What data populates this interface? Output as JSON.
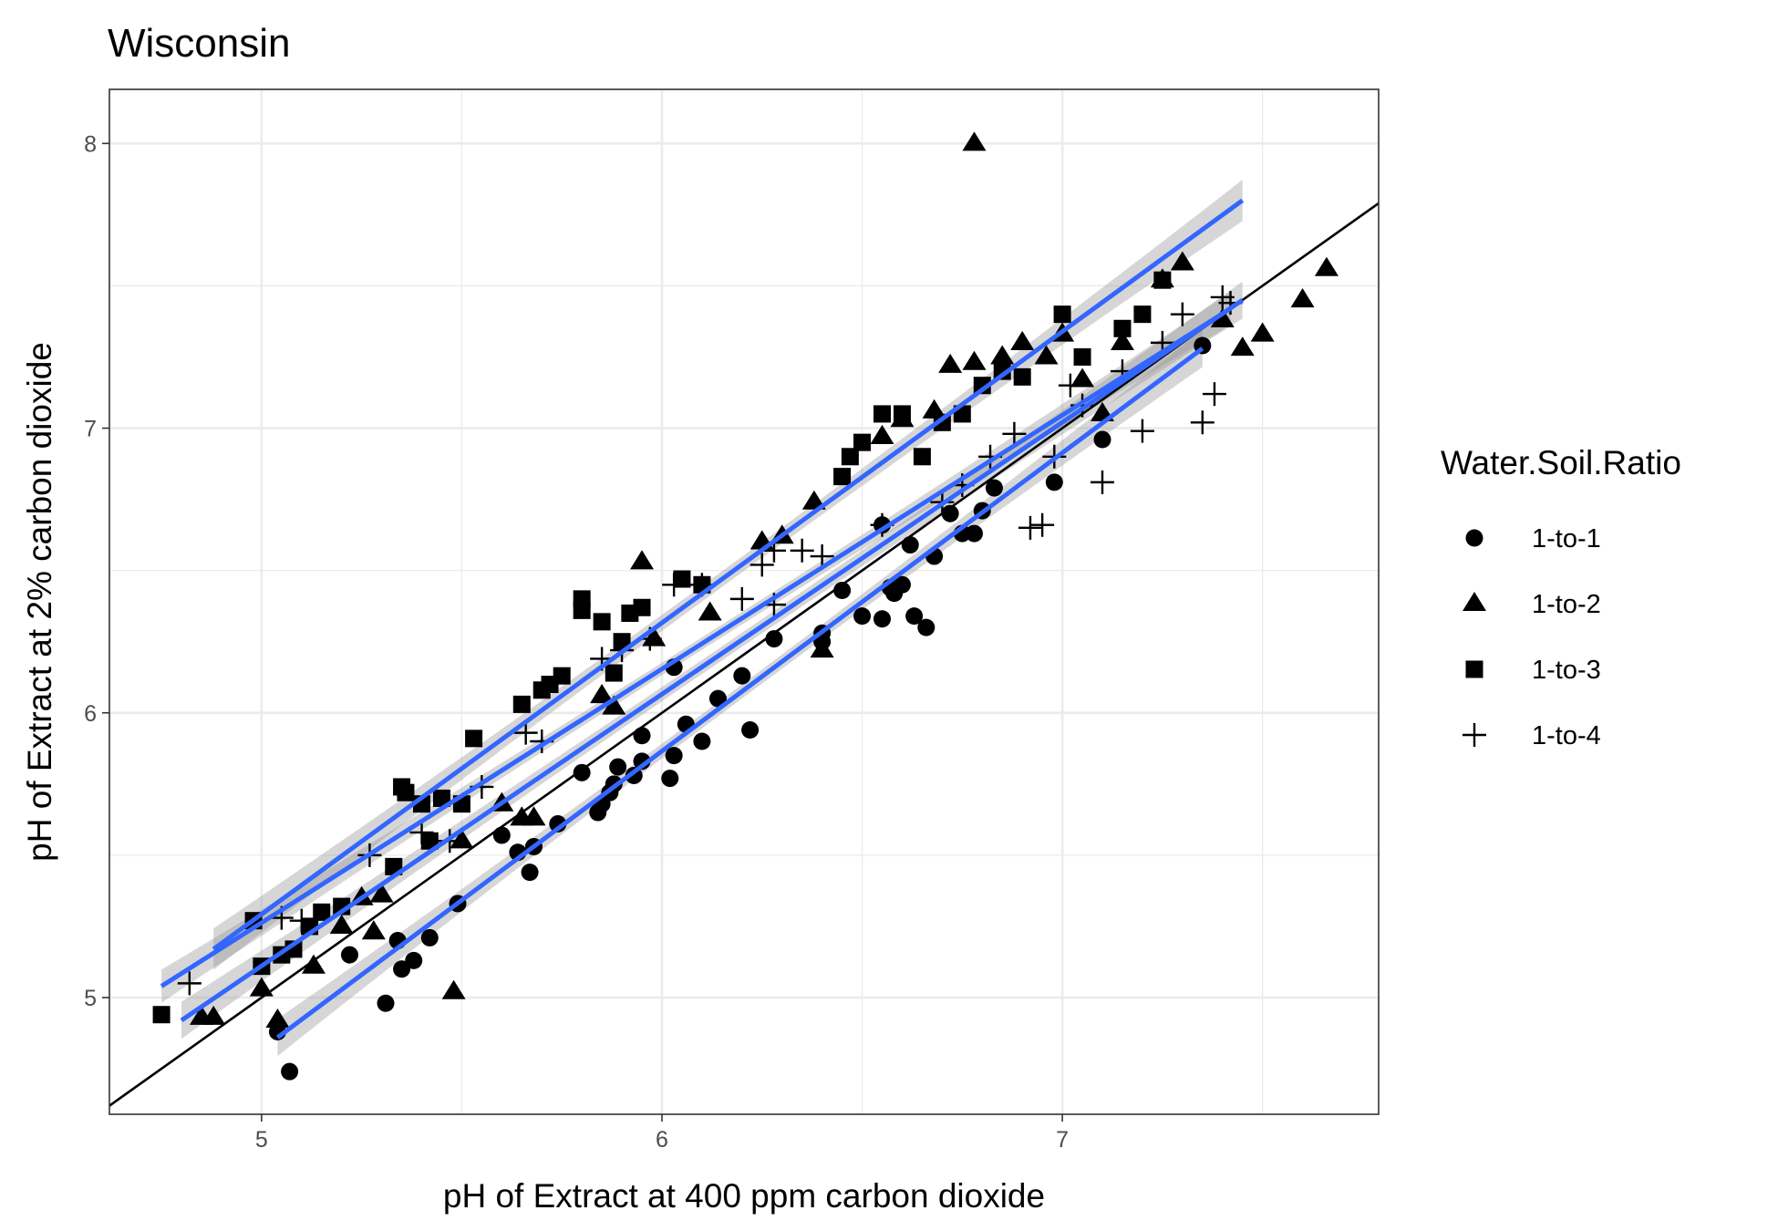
{
  "chart_data": {
    "type": "scatter",
    "title": "Wisconsin",
    "xlabel": "pH of Extract at 400 ppm carbon dioxide",
    "ylabel": "pH of Extract at 2% carbon dioxide",
    "xlim": [
      4.62,
      7.79
    ],
    "ylim": [
      4.59,
      8.19
    ],
    "x_ticks": [
      5,
      6,
      7
    ],
    "y_ticks": [
      5,
      6,
      7,
      8
    ],
    "x_tick_labels": [
      "5",
      "6",
      "7"
    ],
    "y_tick_labels": [
      "5",
      "6",
      "7",
      "8"
    ],
    "grid": true,
    "reference_line": {
      "slope": 1.0,
      "intercept": 0.0,
      "color": "#000000"
    },
    "fit_color": "#3366ff",
    "band_color": "#999999",
    "legend": {
      "title": "Water.Soil.Ratio",
      "placement": "right",
      "entries": [
        {
          "label": "1-to-1",
          "shape": "circle"
        },
        {
          "label": "1-to-2",
          "shape": "triangle"
        },
        {
          "label": "1-to-3",
          "shape": "square"
        },
        {
          "label": "1-to-4",
          "shape": "plus"
        }
      ]
    },
    "series": [
      {
        "name": "1-to-1",
        "shape": "circle",
        "fit": {
          "x": [
            5.04,
            7.35
          ],
          "y": [
            4.86,
            7.28
          ],
          "se": 0.045
        },
        "points": [
          [
            5.07,
            4.74
          ],
          [
            5.04,
            4.88
          ],
          [
            5.31,
            4.98
          ],
          [
            5.35,
            5.1
          ],
          [
            5.38,
            5.13
          ],
          [
            5.34,
            5.2
          ],
          [
            5.42,
            5.21
          ],
          [
            5.22,
            5.15
          ],
          [
            5.49,
            5.33
          ],
          [
            5.67,
            5.44
          ],
          [
            5.64,
            5.51
          ],
          [
            5.68,
            5.53
          ],
          [
            5.6,
            5.57
          ],
          [
            5.74,
            5.61
          ],
          [
            5.84,
            5.65
          ],
          [
            5.85,
            5.68
          ],
          [
            5.87,
            5.72
          ],
          [
            5.8,
            5.79
          ],
          [
            5.89,
            5.81
          ],
          [
            5.88,
            5.75
          ],
          [
            5.95,
            5.83
          ],
          [
            5.93,
            5.78
          ],
          [
            6.02,
            5.77
          ],
          [
            6.03,
            5.85
          ],
          [
            5.95,
            5.92
          ],
          [
            6.06,
            5.96
          ],
          [
            6.1,
            5.9
          ],
          [
            6.14,
            6.05
          ],
          [
            6.2,
            6.13
          ],
          [
            6.22,
            5.94
          ],
          [
            6.28,
            6.26
          ],
          [
            6.03,
            6.16
          ],
          [
            6.4,
            6.25
          ],
          [
            6.4,
            6.28
          ],
          [
            6.45,
            6.43
          ],
          [
            6.5,
            6.34
          ],
          [
            6.55,
            6.33
          ],
          [
            6.57,
            6.44
          ],
          [
            6.58,
            6.42
          ],
          [
            6.6,
            6.45
          ],
          [
            6.63,
            6.34
          ],
          [
            6.66,
            6.3
          ],
          [
            6.68,
            6.55
          ],
          [
            6.62,
            6.59
          ],
          [
            6.55,
            6.66
          ],
          [
            6.72,
            6.7
          ],
          [
            6.75,
            6.63
          ],
          [
            6.78,
            6.63
          ],
          [
            6.8,
            6.71
          ],
          [
            6.83,
            6.79
          ],
          [
            6.98,
            6.81
          ],
          [
            7.1,
            6.96
          ],
          [
            7.35,
            7.29
          ]
        ]
      },
      {
        "name": "1-to-2",
        "shape": "triangle",
        "fit": {
          "x": [
            4.8,
            7.45
          ],
          "y": [
            4.92,
            7.45
          ],
          "se": 0.045
        },
        "points": [
          [
            4.85,
            4.93
          ],
          [
            4.88,
            4.93
          ],
          [
            5.0,
            5.03
          ],
          [
            5.04,
            4.92
          ],
          [
            5.13,
            5.11
          ],
          [
            5.2,
            5.25
          ],
          [
            5.25,
            5.35
          ],
          [
            5.28,
            5.23
          ],
          [
            5.3,
            5.36
          ],
          [
            5.48,
            5.02
          ],
          [
            5.5,
            5.55
          ],
          [
            5.6,
            5.68
          ],
          [
            5.65,
            5.63
          ],
          [
            5.68,
            5.63
          ],
          [
            5.85,
            6.06
          ],
          [
            5.88,
            6.02
          ],
          [
            5.95,
            6.53
          ],
          [
            5.98,
            6.26
          ],
          [
            6.12,
            6.35
          ],
          [
            6.25,
            6.6
          ],
          [
            6.3,
            6.62
          ],
          [
            6.38,
            6.74
          ],
          [
            6.4,
            6.22
          ],
          [
            6.55,
            6.97
          ],
          [
            6.6,
            7.03
          ],
          [
            6.68,
            7.06
          ],
          [
            6.72,
            7.22
          ],
          [
            6.78,
            7.23
          ],
          [
            6.78,
            8.0
          ],
          [
            6.85,
            7.25
          ],
          [
            6.9,
            7.3
          ],
          [
            6.96,
            7.25
          ],
          [
            7.0,
            7.33
          ],
          [
            7.05,
            7.17
          ],
          [
            7.1,
            7.05
          ],
          [
            7.15,
            7.3
          ],
          [
            7.25,
            7.52
          ],
          [
            7.3,
            7.58
          ],
          [
            7.4,
            7.38
          ],
          [
            7.45,
            7.28
          ],
          [
            7.5,
            7.33
          ],
          [
            7.6,
            7.45
          ],
          [
            7.66,
            7.56
          ]
        ]
      },
      {
        "name": "1-to-3",
        "shape": "square",
        "fit": {
          "x": [
            4.88,
            7.45
          ],
          "y": [
            5.17,
            7.8
          ],
          "se": 0.05
        },
        "points": [
          [
            4.75,
            4.94
          ],
          [
            4.98,
            5.27
          ],
          [
            5.0,
            5.11
          ],
          [
            5.05,
            5.15
          ],
          [
            5.08,
            5.17
          ],
          [
            5.12,
            5.25
          ],
          [
            5.15,
            5.3
          ],
          [
            5.2,
            5.32
          ],
          [
            5.33,
            5.46
          ],
          [
            5.35,
            5.74
          ],
          [
            5.36,
            5.72
          ],
          [
            5.4,
            5.68
          ],
          [
            5.42,
            5.55
          ],
          [
            5.45,
            5.7
          ],
          [
            5.5,
            5.68
          ],
          [
            5.53,
            5.91
          ],
          [
            5.65,
            6.03
          ],
          [
            5.7,
            6.08
          ],
          [
            5.72,
            6.1
          ],
          [
            5.75,
            6.13
          ],
          [
            5.8,
            6.4
          ],
          [
            5.8,
            6.36
          ],
          [
            5.85,
            6.32
          ],
          [
            5.88,
            6.14
          ],
          [
            5.9,
            6.25
          ],
          [
            5.92,
            6.35
          ],
          [
            5.95,
            6.37
          ],
          [
            6.05,
            6.47
          ],
          [
            6.1,
            6.45
          ],
          [
            6.45,
            6.83
          ],
          [
            6.47,
            6.9
          ],
          [
            6.5,
            6.95
          ],
          [
            6.55,
            7.05
          ],
          [
            6.6,
            7.05
          ],
          [
            6.65,
            6.9
          ],
          [
            6.7,
            7.02
          ],
          [
            6.75,
            7.05
          ],
          [
            6.8,
            7.15
          ],
          [
            6.85,
            7.2
          ],
          [
            6.9,
            7.18
          ],
          [
            7.0,
            7.4
          ],
          [
            7.05,
            7.25
          ],
          [
            7.15,
            7.35
          ],
          [
            7.2,
            7.4
          ],
          [
            7.25,
            7.52
          ]
        ]
      },
      {
        "name": "1-to-4",
        "shape": "plus",
        "fit": {
          "x": [
            4.75,
            7.42
          ],
          "y": [
            5.04,
            7.42
          ],
          "se": 0.04
        },
        "points": [
          [
            4.82,
            5.05
          ],
          [
            5.05,
            5.28
          ],
          [
            5.1,
            5.27
          ],
          [
            5.27,
            5.5
          ],
          [
            5.4,
            5.58
          ],
          [
            5.47,
            5.55
          ],
          [
            5.55,
            5.74
          ],
          [
            5.66,
            5.93
          ],
          [
            5.7,
            5.9
          ],
          [
            5.85,
            6.19
          ],
          [
            5.9,
            6.22
          ],
          [
            5.97,
            6.26
          ],
          [
            6.03,
            6.45
          ],
          [
            6.1,
            6.45
          ],
          [
            6.2,
            6.4
          ],
          [
            6.25,
            6.52
          ],
          [
            6.28,
            6.57
          ],
          [
            6.28,
            6.38
          ],
          [
            6.35,
            6.57
          ],
          [
            6.4,
            6.55
          ],
          [
            6.55,
            6.66
          ],
          [
            6.7,
            6.74
          ],
          [
            6.75,
            6.8
          ],
          [
            6.82,
            6.9
          ],
          [
            6.88,
            6.98
          ],
          [
            6.92,
            6.65
          ],
          [
            6.95,
            6.66
          ],
          [
            6.98,
            6.9
          ],
          [
            7.02,
            7.15
          ],
          [
            7.05,
            7.08
          ],
          [
            7.1,
            6.81
          ],
          [
            7.15,
            7.2
          ],
          [
            7.2,
            6.99
          ],
          [
            7.25,
            7.3
          ],
          [
            7.3,
            7.4
          ],
          [
            7.35,
            7.02
          ],
          [
            7.38,
            7.12
          ],
          [
            7.4,
            7.46
          ],
          [
            7.42,
            7.44
          ]
        ]
      }
    ]
  }
}
